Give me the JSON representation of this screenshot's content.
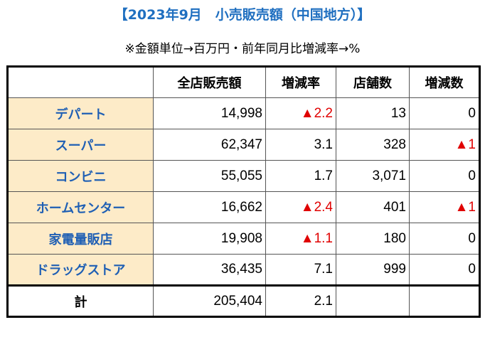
{
  "title": "【2023年9月　小売販売額（中国地方）】",
  "subtitle": "※金額単位→百万円・前年同月比増減率→%",
  "table": {
    "headers": [
      "",
      "全店販売額",
      "増減率",
      "店舗数",
      "増減数"
    ],
    "rows": [
      {
        "category": "デパート",
        "sales": "14,998",
        "rate": "▲2.2",
        "rate_neg": true,
        "stores": "13",
        "change": "0",
        "change_neg": false
      },
      {
        "category": "スーパー",
        "sales": "62,347",
        "rate": "3.1",
        "rate_neg": false,
        "stores": "328",
        "change": "▲1",
        "change_neg": true
      },
      {
        "category": "コンビニ",
        "sales": "55,055",
        "rate": "1.7",
        "rate_neg": false,
        "stores": "3,071",
        "change": "0",
        "change_neg": false
      },
      {
        "category": "ホームセンター",
        "sales": "16,662",
        "rate": "▲2.4",
        "rate_neg": true,
        "stores": "401",
        "change": "▲1",
        "change_neg": true
      },
      {
        "category": "家電量販店",
        "sales": "19,908",
        "rate": "▲1.1",
        "rate_neg": true,
        "stores": "180",
        "change": "0",
        "change_neg": false
      },
      {
        "category": "ドラッグストア",
        "sales": "36,435",
        "rate": "7.1",
        "rate_neg": false,
        "stores": "999",
        "change": "0",
        "change_neg": false
      }
    ],
    "total": {
      "label": "計",
      "sales": "205,404",
      "rate": "2.1",
      "stores": "",
      "change": ""
    }
  },
  "colors": {
    "title": "#1f6fc0",
    "category_bg": "#fdebc8",
    "category_text": "#1f5fb4",
    "negative": "#e00000"
  }
}
